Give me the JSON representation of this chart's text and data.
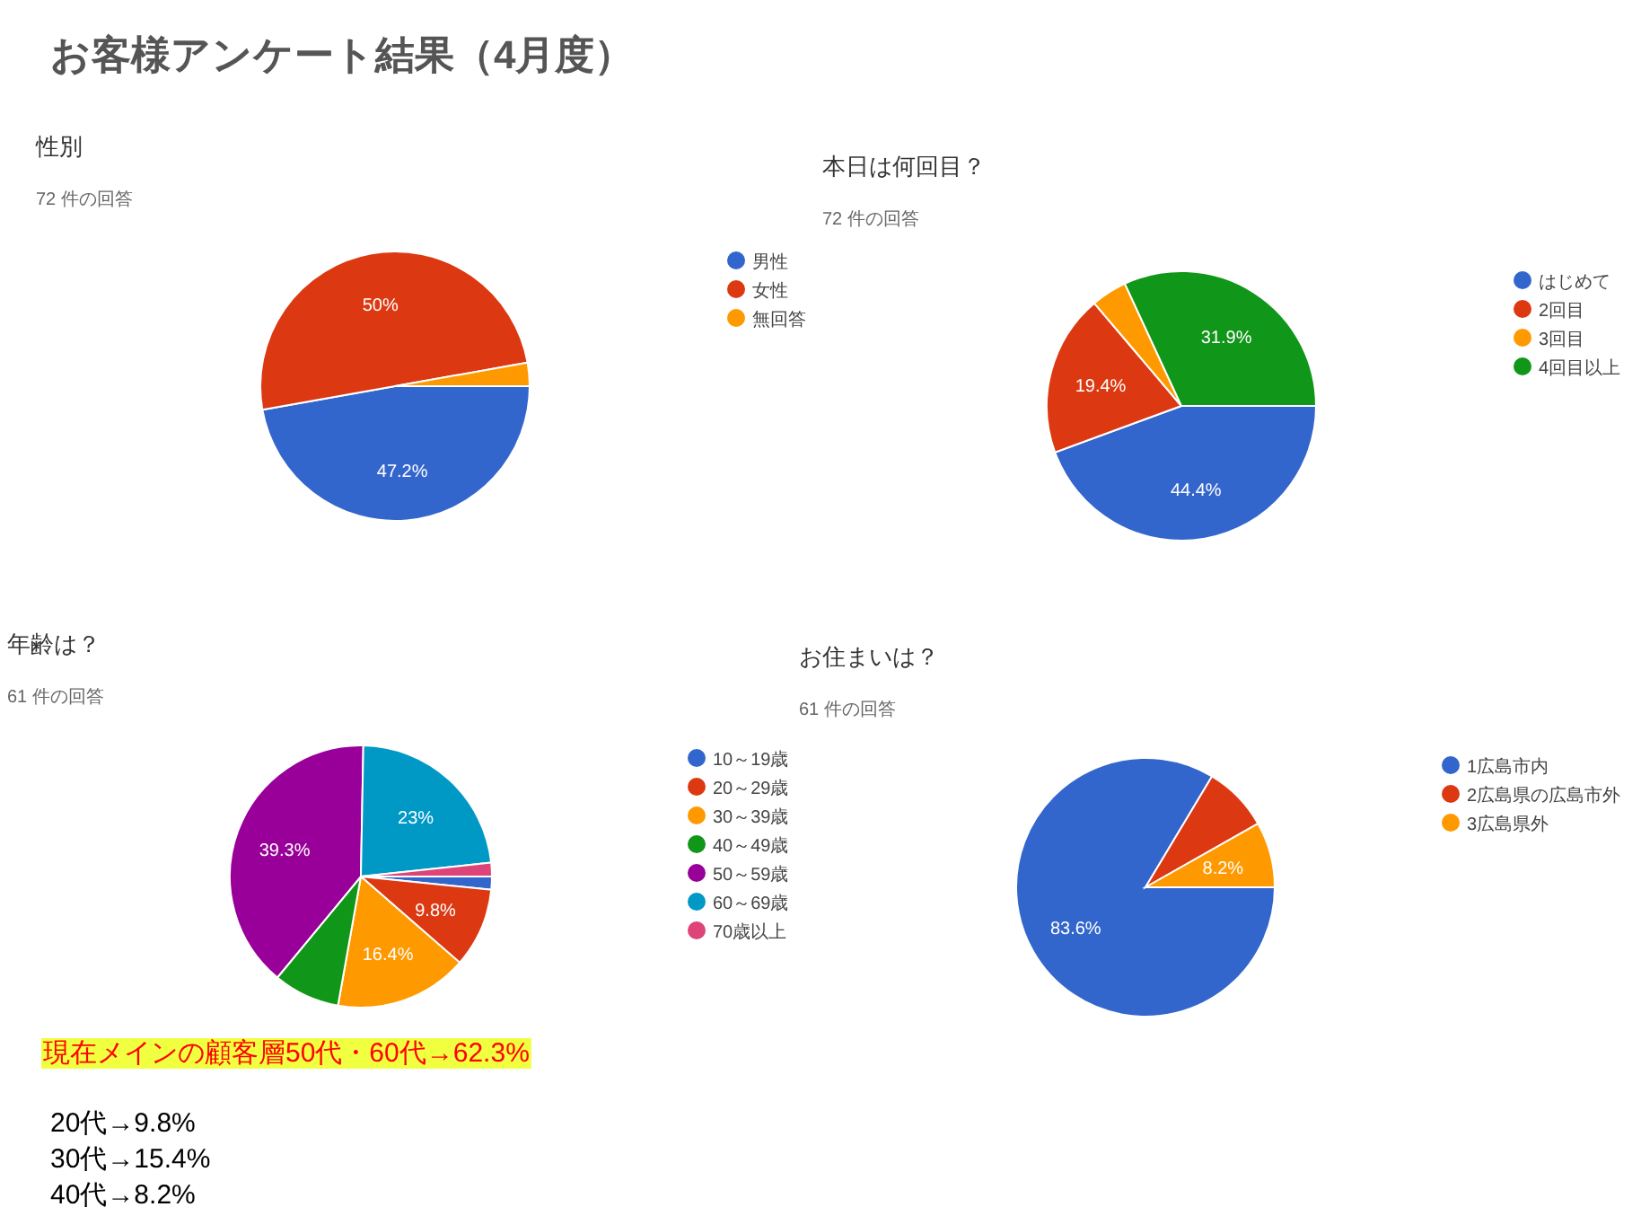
{
  "chart_data": [
    {
      "type": "pie",
      "title": "性別",
      "subtitle": "72 件の回答",
      "legend": "right",
      "annotations": [
        "お客様アンケート結果（4月度）"
      ],
      "categories": [
        "男性",
        "女性",
        "無回答"
      ],
      "values": [
        47.2,
        50,
        2.8
      ],
      "colors": [
        "#3366cc",
        "#dc3912",
        "#ff9900"
      ],
      "value_labels": [
        "47.2%",
        "50%",
        null
      ]
    },
    {
      "type": "pie",
      "title": "本日は何回目？",
      "subtitle": "72 件の回答",
      "legend": "right",
      "categories": [
        "はじめて",
        "2回目",
        "3回目",
        "4回目以上"
      ],
      "values": [
        44.4,
        19.4,
        4.3,
        31.9
      ],
      "colors": [
        "#3366cc",
        "#dc3912",
        "#ff9900",
        "#109618"
      ],
      "value_labels": [
        "44.4%",
        "19.4%",
        null,
        "31.9%"
      ]
    },
    {
      "type": "pie",
      "title": "年齢は？",
      "subtitle": "61 件の回答",
      "legend": "right",
      "annotations": [
        "現在メインの顧客層50代・60代→62.3%",
        "20代→9.8%",
        "30代→15.4%",
        "40代→8.2%"
      ],
      "categories": [
        "10～19歳",
        "20～29歳",
        "30～39歳",
        "40～49歳",
        "50～59歳",
        "60～69歳",
        "70歳以上"
      ],
      "values": [
        1.6,
        9.8,
        16.4,
        8.2,
        39.3,
        23,
        1.7
      ],
      "colors": [
        "#3366cc",
        "#dc3912",
        "#ff9900",
        "#109618",
        "#990099",
        "#0099c6",
        "#dd4477"
      ],
      "value_labels": [
        null,
        "9.8%",
        "16.4%",
        null,
        "39.3%",
        "23%",
        null
      ]
    },
    {
      "type": "pie",
      "title": "お住まいは？",
      "subtitle": "61 件の回答",
      "legend": "right",
      "categories": [
        "1広島市内",
        "2広島県の広島市外",
        "3広島県外"
      ],
      "values": [
        83.6,
        8.2,
        8.2
      ],
      "colors": [
        "#3366cc",
        "#dc3912",
        "#ff9900"
      ],
      "value_labels": [
        "83.6%",
        null,
        "8.2%"
      ]
    }
  ]
}
